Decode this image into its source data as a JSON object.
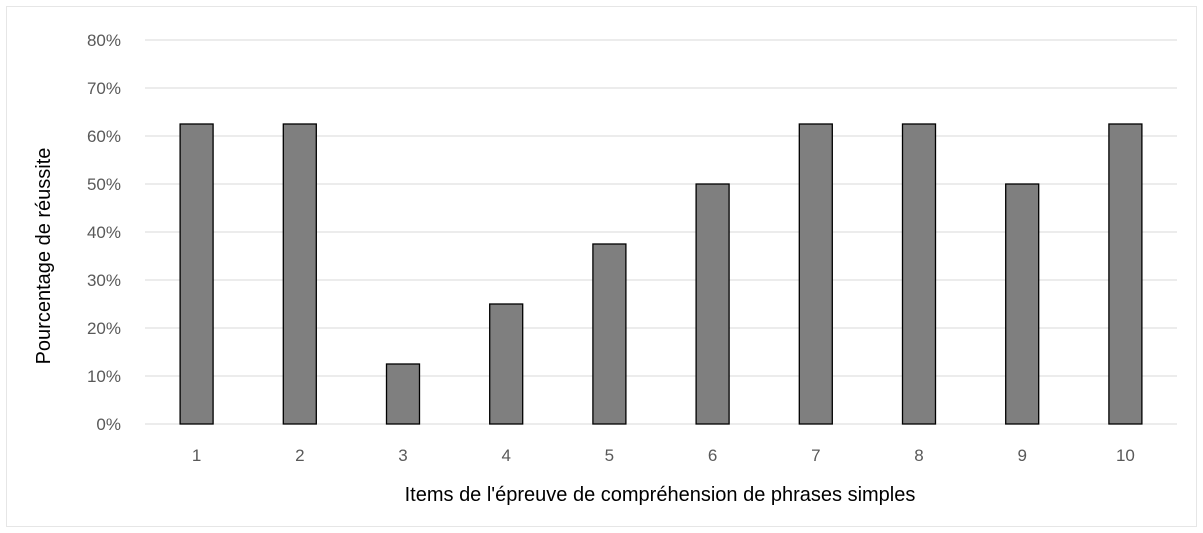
{
  "chart_data": {
    "type": "bar",
    "title": "",
    "xlabel": "Items de l'épreuve de compréhension de phrases simples",
    "ylabel": "Pourcentage de réussite",
    "categories": [
      "1",
      "2",
      "3",
      "4",
      "5",
      "6",
      "7",
      "8",
      "9",
      "10"
    ],
    "values": [
      62.5,
      62.5,
      12.5,
      25,
      37.5,
      50,
      62.5,
      62.5,
      50,
      62.5
    ],
    "ylim": [
      0,
      80
    ],
    "yticks": [
      "0%",
      "10%",
      "20%",
      "30%",
      "40%",
      "50%",
      "60%",
      "70%",
      "80%"
    ],
    "grid": true,
    "legend": "none",
    "colors": {
      "bar_fill": "#7f7f7f",
      "bar_stroke": "#000000",
      "gridline": "#d9d9d9",
      "tick_text": "#595959"
    }
  }
}
